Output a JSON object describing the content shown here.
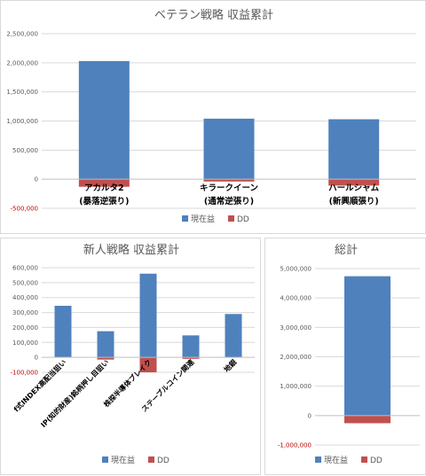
{
  "colors": {
    "profit": "#4f81bd",
    "dd": "#c0504d",
    "negative_tick": "#c00000"
  },
  "chart_data": [
    {
      "id": "top",
      "type": "bar",
      "title": "ベテラン戦略 収益累計",
      "categories": [
        [
          "アカルタ2",
          "(暴落逆張り)"
        ],
        [
          "キラークイーン",
          "(通常逆張り)"
        ],
        [
          "ハールシャム",
          "(新興順張り)"
        ]
      ],
      "series": [
        {
          "name": "現在益",
          "values": [
            2030000,
            1040000,
            1030000
          ]
        },
        {
          "name": "DD",
          "values": [
            -130000,
            -40000,
            -110000
          ]
        }
      ],
      "ylim": [
        -500000,
        2500000
      ],
      "yticks": [
        "-500,000",
        "0",
        "500,000",
        "1,000,000",
        "1,500,000",
        "2,000,000",
        "2,500,000"
      ],
      "grid": true,
      "legend": "bottom"
    },
    {
      "id": "left",
      "type": "bar",
      "title": "新人戦略 収益累計",
      "categories": [
        "f式INDEX高配当狙い",
        "IP(知的財産)銘柄押し目狙い",
        "株探半導体ブレイク",
        "ステーブルコイン関連",
        "地銀"
      ],
      "series": [
        {
          "name": "現在益",
          "values": [
            345000,
            175000,
            560000,
            147000,
            290000
          ]
        },
        {
          "name": "DD",
          "values": [
            0,
            -15000,
            -100000,
            -10000,
            0
          ]
        }
      ],
      "ylim": [
        -100000,
        600000
      ],
      "yticks": [
        "-100,000",
        "0",
        "100,000",
        "200,000",
        "300,000",
        "400,000",
        "500,000",
        "600,000"
      ],
      "grid": true,
      "legend": "bottom"
    },
    {
      "id": "right",
      "type": "bar",
      "title": "総計",
      "categories": [
        ""
      ],
      "series": [
        {
          "name": "現在益",
          "values": [
            4740000
          ]
        },
        {
          "name": "DD",
          "values": [
            -260000
          ]
        }
      ],
      "ylim": [
        -1000000,
        5000000
      ],
      "yticks": [
        "-1,000,000",
        "0",
        "1,000,000",
        "2,000,000",
        "3,000,000",
        "4,000,000",
        "5,000,000"
      ],
      "grid": true,
      "legend": "bottom"
    }
  ]
}
